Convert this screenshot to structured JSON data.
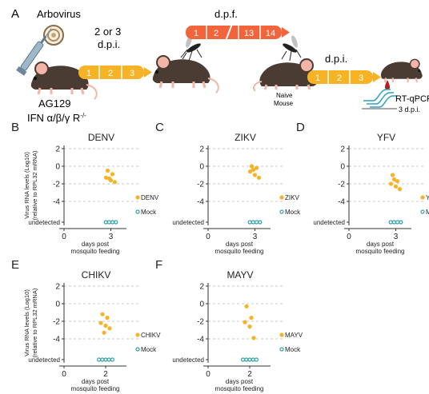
{
  "figure": {
    "panel_a": {
      "letter": "A",
      "virus_label": "Arbovirus",
      "injection_time_top": "2 or 3",
      "injection_time_bottom": "d.p.i.",
      "mouse_strain": "AG129",
      "mouse_genotype": "IFN α/β/γ R",
      "genotype_superscript": "-/-",
      "dpi_segments": [
        "1",
        "2",
        "3"
      ],
      "dpf_label": "d.p.f.",
      "dpf_segments": [
        "1",
        "2",
        "13",
        "14"
      ],
      "naive_label_1": "Naive",
      "naive_label_2": "Mouse",
      "dpi2_label": "d.p.i.",
      "dpi2_segments": [
        "1",
        "2",
        "3"
      ],
      "assay_label": "RT-qPCR",
      "assay_time": "3 d.p.i.",
      "colors": {
        "mouse_body": "#4a3b33",
        "mouse_belly": "#8a7466",
        "mouse_ear": "#f3b5a6",
        "mosquito": "#222222",
        "orange_bar": "#f2643c",
        "yellow_bar": "#f6b325",
        "syringe": "#9db8c9",
        "assay_curve": "#2f9fc4",
        "blood": "#b32020"
      }
    }
  },
  "shared": {
    "ylabel_line1": "Virus RNA levels (Log10)",
    "ylabel_line2": "(relative to RPL32 mRNA)",
    "xlabel_line1": "days post",
    "xlabel_line2": "mosquito feeding",
    "undetected_label": "undetected",
    "mock_label": "Mock",
    "virus_color": "#f6b325",
    "mock_color": "#2fa3a8"
  },
  "chart_data": [
    {
      "letter": "B",
      "type": "scatter",
      "title": "DENV",
      "xlim": [
        0,
        4
      ],
      "ylim": [
        -6,
        2
      ],
      "x_ticks": [
        0,
        3
      ],
      "y_ticks": [
        2,
        0,
        -2,
        -4
      ],
      "undetected_value": -6,
      "series": [
        {
          "name": "DENV",
          "x": 3,
          "values": [
            -0.5,
            -0.9,
            -1.3,
            -1.6,
            -1.8,
            -1.4
          ]
        },
        {
          "name": "Mock",
          "x": 3,
          "values": [
            -6,
            -6,
            -6,
            -6
          ]
        }
      ]
    },
    {
      "letter": "C",
      "type": "scatter",
      "title": "ZIKV",
      "xlim": [
        0,
        4
      ],
      "ylim": [
        -6,
        2
      ],
      "x_ticks": [
        0,
        3
      ],
      "y_ticks": [
        2,
        0,
        -2,
        -4
      ],
      "undetected_value": -6,
      "series": [
        {
          "name": "ZIKV",
          "x": 3,
          "values": [
            0,
            -0.2,
            -0.6,
            -1.0,
            -1.3,
            -0.4
          ]
        },
        {
          "name": "Mock",
          "x": 3,
          "values": [
            -6,
            -6,
            -6,
            -6
          ]
        }
      ]
    },
    {
      "letter": "D",
      "type": "scatter",
      "title": "YFV",
      "xlim": [
        0,
        4
      ],
      "ylim": [
        -6,
        2
      ],
      "x_ticks": [
        0,
        3
      ],
      "y_ticks": [
        2,
        0,
        -2,
        -4
      ],
      "undetected_value": -6,
      "series": [
        {
          "name": "YFV",
          "x": 3,
          "values": [
            -1.0,
            -1.7,
            -2.0,
            -2.3,
            -2.6,
            -1.5
          ]
        },
        {
          "name": "Mock",
          "x": 3,
          "values": [
            -6,
            -6,
            -6,
            -6
          ]
        }
      ]
    },
    {
      "letter": "E",
      "type": "scatter",
      "title": "CHIKV",
      "xlim": [
        0,
        3
      ],
      "ylim": [
        -6,
        2
      ],
      "x_ticks": [
        0,
        2
      ],
      "y_ticks": [
        2,
        0,
        -2,
        -4
      ],
      "undetected_value": -6,
      "series": [
        {
          "name": "CHIKV",
          "x": 2,
          "values": [
            -1.2,
            -1.6,
            -2.2,
            -2.5,
            -2.8,
            -3.3
          ]
        },
        {
          "name": "Mock",
          "x": 2,
          "values": [
            -6,
            -6,
            -6,
            -6,
            -6
          ]
        }
      ]
    },
    {
      "letter": "F",
      "type": "scatter",
      "title": "MAYV",
      "xlim": [
        0,
        3
      ],
      "ylim": [
        -6,
        2
      ],
      "x_ticks": [
        0,
        2
      ],
      "y_ticks": [
        2,
        0,
        -2,
        -4
      ],
      "undetected_value": -6,
      "series": [
        {
          "name": "MAYV",
          "x": 2,
          "values": [
            -0.3,
            -1.6,
            -2.1,
            -2.6,
            -3.9
          ]
        },
        {
          "name": "Mock",
          "x": 2,
          "values": [
            -6,
            -6,
            -6,
            -6,
            -6
          ]
        }
      ]
    }
  ]
}
